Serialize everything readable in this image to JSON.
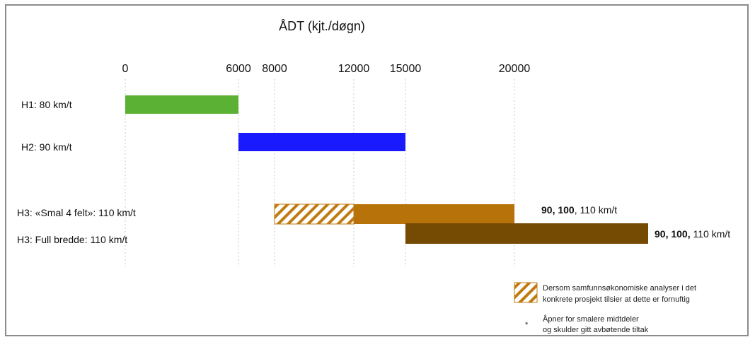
{
  "chart_data": {
    "type": "bar",
    "title": "ÅDT (kjt./døgn)",
    "x_ticks": [
      0,
      6000,
      8000,
      12000,
      15000,
      20000
    ],
    "xlim": [
      0,
      27000
    ],
    "grid": true,
    "rows": [
      {
        "label": "H1: 80 km/t",
        "segments": [
          {
            "from": 0,
            "to": 6000,
            "color": "#5bb134",
            "pattern": "solid"
          }
        ]
      },
      {
        "label": "H2: 90 km/t",
        "segments": [
          {
            "from": 6000,
            "to": 15000,
            "color": "#1a1aff",
            "pattern": "solid"
          }
        ]
      },
      {
        "label": "H3: «Smal 4 felt»:  110 km/t",
        "segments": [
          {
            "from": 8000,
            "to": 12000,
            "color": "#c07a10",
            "pattern": "hatched"
          },
          {
            "from": 12000,
            "to": 20000,
            "color": "#b8720a",
            "pattern": "solid"
          }
        ],
        "end_label": {
          "bold": "90, 100",
          "rest": ", 110 km/t"
        }
      },
      {
        "label": "H3: Full bredde: 110 km/t",
        "segments": [
          {
            "from": 15000,
            "to": 27000,
            "color": "#754a03",
            "pattern": "solid"
          }
        ],
        "end_label": {
          "bold": "90, 100,",
          "rest": "  110 km/t"
        }
      }
    ]
  },
  "legend": {
    "hatched_line1": "Dersom samfunnsøkonomiske analyser i det",
    "hatched_line2": "konkrete prosjekt tilsier at dette er fornuftig",
    "note_marker": "*",
    "note_line1": "Åpner for smalere midtdeler",
    "note_line2": "og skulder gitt avbøtende tiltak"
  }
}
